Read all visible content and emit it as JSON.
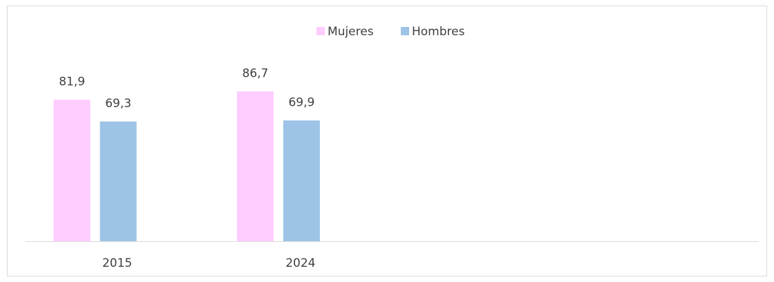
{
  "chart_data": {
    "type": "bar",
    "categories": [
      "2015",
      "2024",
      null,
      null
    ],
    "series": [
      {
        "name": "Mujeres",
        "color": "#ffccff",
        "values": [
          81.9,
          86.7,
          null,
          null
        ],
        "value_labels": [
          "81,9",
          "86,7",
          null,
          null
        ]
      },
      {
        "name": "Hombres",
        "color": "#9dc3e6",
        "values": [
          69.3,
          69.9,
          null,
          null
        ],
        "value_labels": [
          "69,3",
          "69,9",
          null,
          null
        ]
      }
    ],
    "ylim": [
      0,
      100
    ],
    "legend": "top"
  }
}
